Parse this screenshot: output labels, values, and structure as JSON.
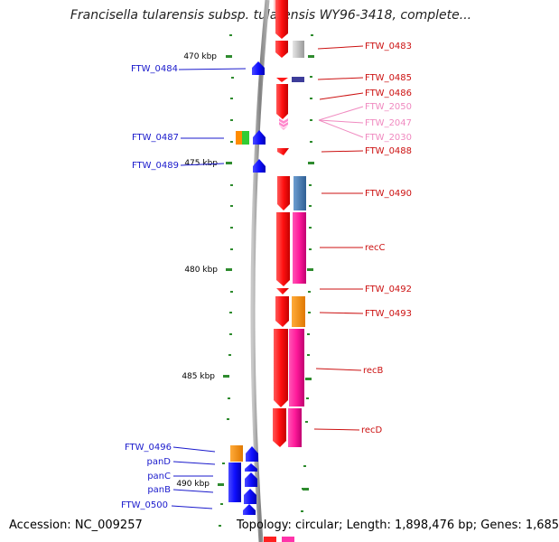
{
  "title": "Francisella tularensis subsp. tularensis WY96-3418, complete...",
  "footer": {
    "accession": "Accession: NC_009257",
    "topology": "Topology: circular; Length: 1,898,476 bp; Genes: 1,685"
  },
  "colors": {
    "backbone": "#8c8c8c",
    "ticks": "#2e8b2e",
    "forward_strand": "#1515ff",
    "reverse_strand": "#ff1a1a",
    "rna": "#ff88cc",
    "label_blue": "#1a1acc",
    "label_red": "#cc1111",
    "label_pink": "#f08ac0"
  },
  "ruler": [
    {
      "label": "470 kbp"
    },
    {
      "label": "475 kbp"
    },
    {
      "label": "480 kbp"
    },
    {
      "label": "485 kbp"
    },
    {
      "label": "490 kbp"
    }
  ],
  "left_labels": [
    {
      "text": "FTW_0484"
    },
    {
      "text": "FTW_0487"
    },
    {
      "text": "FTW_0489"
    },
    {
      "text": "FTW_0496"
    },
    {
      "text": "panD"
    },
    {
      "text": "panC"
    },
    {
      "text": "panB"
    },
    {
      "text": "FTW_0500"
    }
  ],
  "right_labels": [
    {
      "text": "FTW_0483"
    },
    {
      "text": "FTW_0485"
    },
    {
      "text": "FTW_0486"
    },
    {
      "text": "FTW_2050"
    },
    {
      "text": "FTW_2047"
    },
    {
      "text": "FTW_2030"
    },
    {
      "text": "FTW_0488"
    },
    {
      "text": "FTW_0490"
    },
    {
      "text": "recC"
    },
    {
      "text": "FTW_0492"
    },
    {
      "text": "FTW_0493"
    },
    {
      "text": "recB"
    },
    {
      "text": "recD"
    }
  ]
}
